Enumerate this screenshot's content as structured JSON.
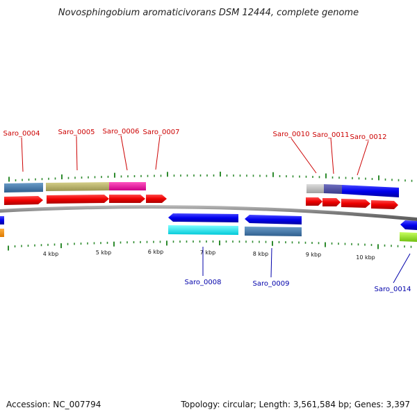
{
  "title": "Novosphingobium aromaticivorans DSM 12444, complete genome",
  "footer": {
    "accession": "Accession: NC_007794",
    "summary": "Topology: circular; Length: 3,561,584 bp; Genes: 3,397"
  },
  "colors": {
    "backbone": "#8c8c8c",
    "tick": "#2e8b2e",
    "forward_label": "#cc0000",
    "reverse_label": "#0000aa"
  },
  "scale_labels": [
    "4 kbp",
    "5 kbp",
    "6 kbp",
    "7 kbp",
    "8 kbp",
    "9 kbp",
    "10 kbp"
  ],
  "forward_genes": [
    {
      "label": "Saro_0004"
    },
    {
      "label": "Saro_0005"
    },
    {
      "label": "Saro_0006"
    },
    {
      "label": "Saro_0007"
    },
    {
      "label": "Saro_0010"
    },
    {
      "label": "Saro_0011"
    },
    {
      "label": "Saro_0012"
    }
  ],
  "reverse_genes": [
    {
      "label": "Saro_0008"
    },
    {
      "label": "Saro_0009"
    },
    {
      "label": "Saro_0014"
    }
  ]
}
